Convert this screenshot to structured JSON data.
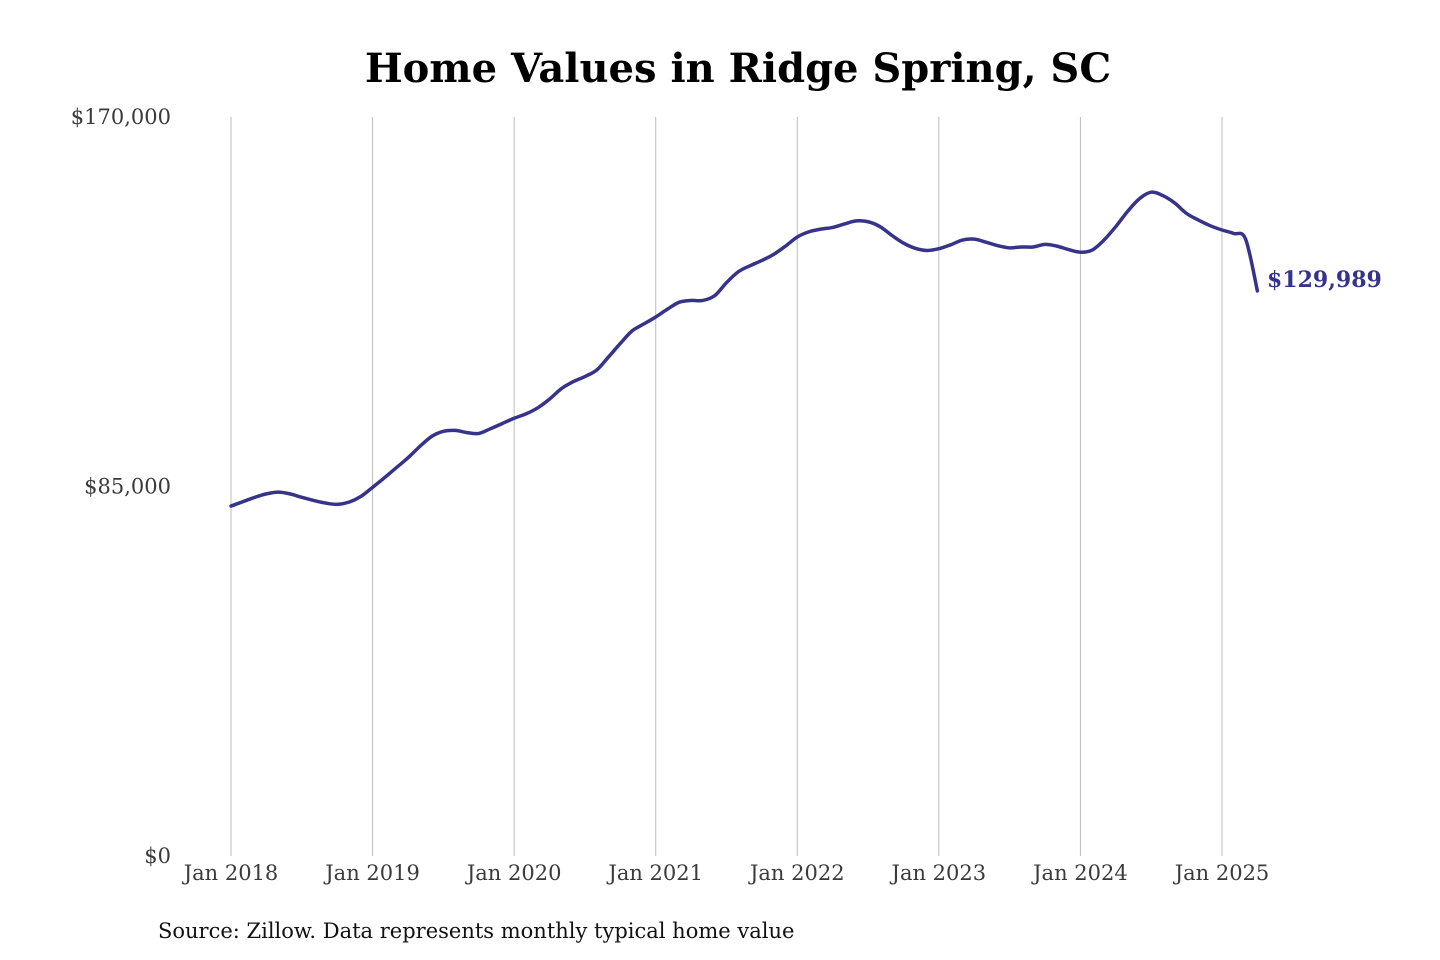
{
  "chart_data": {
    "type": "line",
    "title": "Home Values in Ridge Spring, SC",
    "xlabel": "",
    "ylabel": "",
    "source": "Source: Zillow. Data represents monthly typical home value",
    "ylim": [
      0,
      170000
    ],
    "y_ticks": [
      {
        "value": 0,
        "label": "$0"
      },
      {
        "value": 85000,
        "label": "$85,000"
      },
      {
        "value": 170000,
        "label": "$170,000"
      }
    ],
    "x_ticks": [
      {
        "month_index": 0,
        "label": "Jan 2018"
      },
      {
        "month_index": 12,
        "label": "Jan 2019"
      },
      {
        "month_index": 24,
        "label": "Jan 2020"
      },
      {
        "month_index": 36,
        "label": "Jan 2021"
      },
      {
        "month_index": 48,
        "label": "Jan 2022"
      },
      {
        "month_index": 60,
        "label": "Jan 2023"
      },
      {
        "month_index": 72,
        "label": "Jan 2024"
      },
      {
        "month_index": 84,
        "label": "Jan 2025"
      }
    ],
    "grid": "vertical",
    "line_color": "#35348a",
    "end_label": "$129,989",
    "series": [
      {
        "name": "Typical home value",
        "x_start": "Jan 2018",
        "x_step": "month",
        "values": [
          80500,
          81500,
          82500,
          83300,
          83700,
          83300,
          82500,
          81800,
          81200,
          80900,
          81400,
          82700,
          84800,
          87000,
          89300,
          91600,
          94200,
          96500,
          97700,
          97900,
          97400,
          97200,
          98300,
          99500,
          100700,
          101700,
          103100,
          105100,
          107500,
          109100,
          110300,
          111800,
          114800,
          117900,
          120800,
          122400,
          124000,
          125800,
          127400,
          127800,
          127800,
          128900,
          131900,
          134400,
          135800,
          137000,
          138400,
          140300,
          142400,
          143600,
          144200,
          144600,
          145400,
          146100,
          145900,
          144800,
          142800,
          141000,
          139800,
          139300,
          139700,
          140600,
          141700,
          141900,
          141200,
          140400,
          139900,
          140100,
          140100,
          140700,
          140300,
          139500,
          138900,
          139400,
          141700,
          144800,
          148300,
          151200,
          152700,
          151900,
          150200,
          147800,
          146300,
          145000,
          144000,
          143200,
          141900,
          129989
        ]
      }
    ]
  }
}
